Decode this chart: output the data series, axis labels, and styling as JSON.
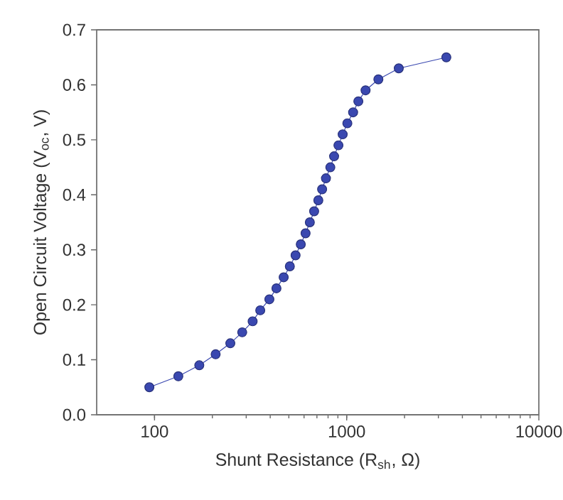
{
  "chart_data": {
    "type": "line",
    "xlabel": "Shunt Resistance (R$_{sh}$, Ω)",
    "ylabel": "Open Circuit Voltage (V$_{oc}$, V)",
    "log": "x",
    "xlim": [
      50,
      10000
    ],
    "xticks": [
      100,
      1000,
      10000
    ],
    "ylim": [
      0,
      0.7
    ],
    "yticks": [
      {
        "value": 0,
        "label": "0.0"
      },
      0.1,
      0.2,
      0.3,
      0.4,
      0.5,
      0.6,
      0.7
    ],
    "marker": "circle",
    "line_style": "solid",
    "series": [
      {
        "color": "#3a48b0",
        "x": [
          94,
          133,
          171,
          208,
          248,
          286,
          324,
          355,
          396,
          431,
          470,
          506,
          542,
          577,
          611,
          643,
          677,
          712,
          745,
          780,
          822,
          860,
          906,
          953,
          1008,
          1080,
          1150,
          1254,
          1462,
          1867,
          3300
        ],
        "values": [
          0.05,
          0.07,
          0.09,
          0.11,
          0.13,
          0.15,
          0.17,
          0.19,
          0.21,
          0.23,
          0.25,
          0.27,
          0.29,
          0.31,
          0.33,
          0.35,
          0.37,
          0.39,
          0.41,
          0.43,
          0.45,
          0.47,
          0.49,
          0.51,
          0.53,
          0.55,
          0.57,
          0.59,
          0.61,
          0.63,
          0.65
        ]
      }
    ]
  }
}
